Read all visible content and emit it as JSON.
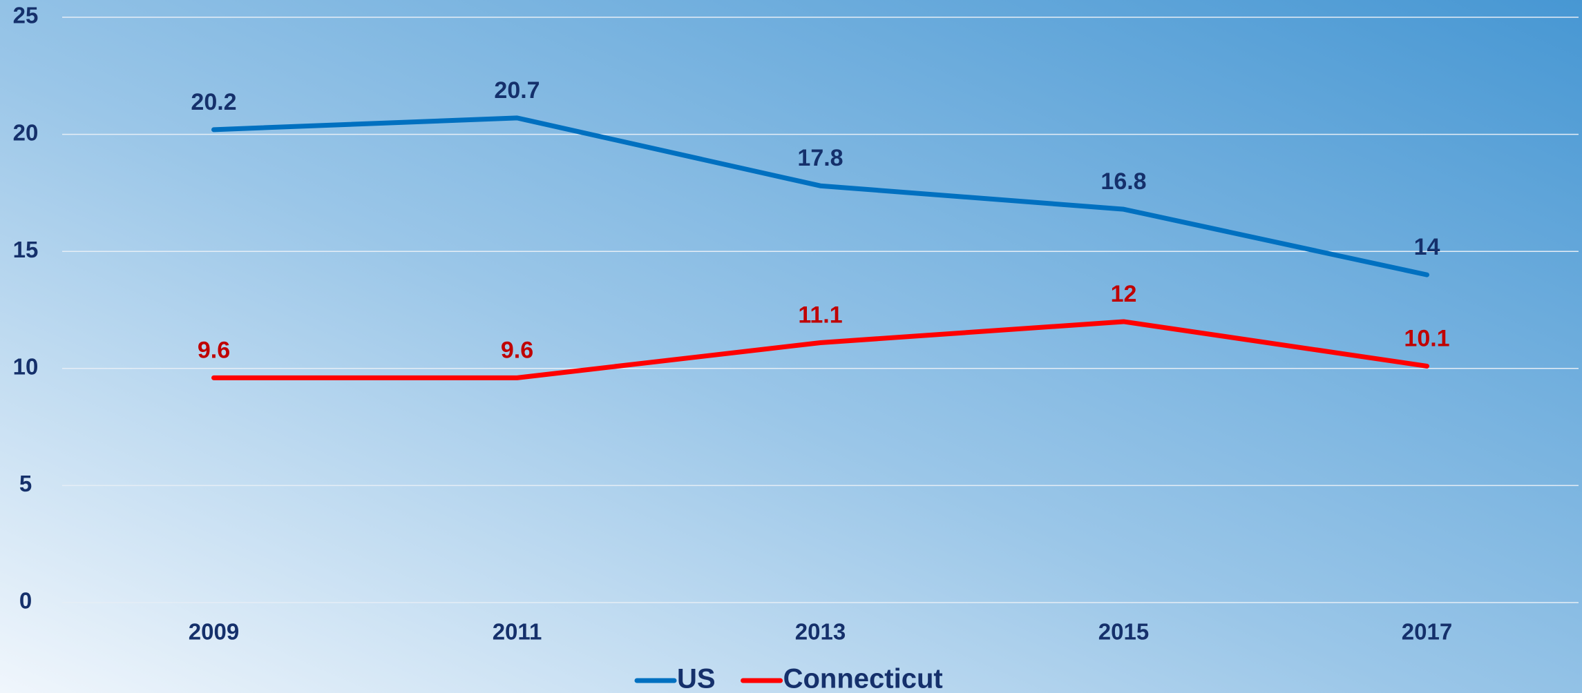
{
  "chart_data": {
    "type": "line",
    "categories": [
      "2009",
      "2011",
      "2013",
      "2015",
      "2017"
    ],
    "series": [
      {
        "name": "US",
        "color": "#0070c0",
        "label_color": "#15306b",
        "values": [
          20.2,
          20.7,
          17.8,
          16.8,
          14
        ]
      },
      {
        "name": "Connecticut",
        "color": "#ff0000",
        "label_color": "#c00000",
        "values": [
          9.6,
          9.6,
          11.1,
          12,
          10.1
        ]
      }
    ],
    "ylim": [
      0,
      25
    ],
    "yticks": [
      0,
      5,
      10,
      15,
      20,
      25
    ],
    "grid": true,
    "legend": "bottom"
  }
}
